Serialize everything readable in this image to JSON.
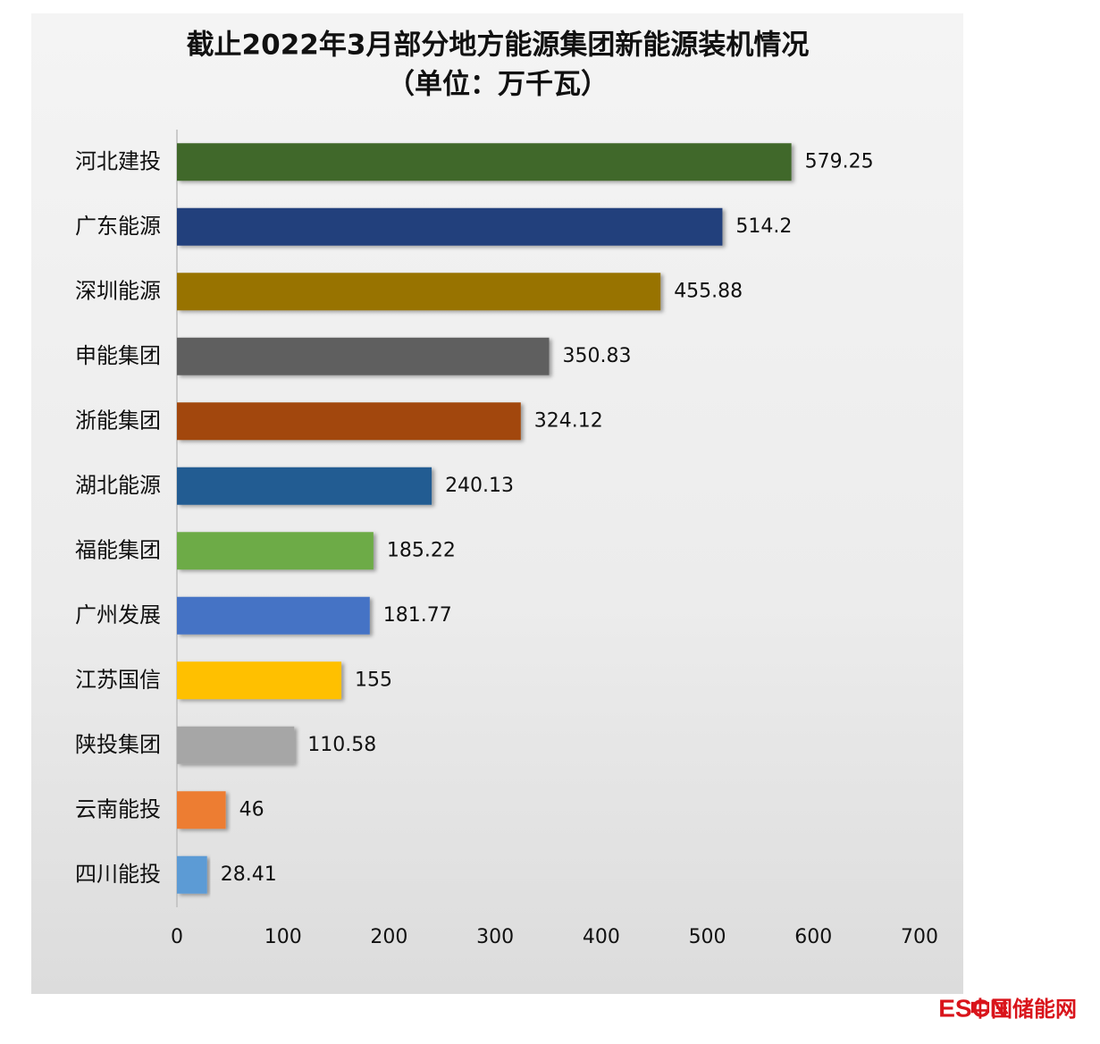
{
  "chart_data": {
    "type": "bar",
    "orientation": "horizontal",
    "title": "截止2022年3月部分地方能源集团新能源装机情况",
    "subtitle": "（单位：万千瓦）",
    "categories": [
      "河北建投",
      "广东能源",
      "深圳能源",
      "申能集团",
      "浙能集团",
      "湖北能源",
      "福能集团",
      "广州发展",
      "江苏国信",
      "陕投集团",
      "云南能投",
      "四川能投"
    ],
    "values": [
      579.25,
      514.2,
      455.88,
      350.83,
      324.12,
      240.13,
      185.22,
      181.77,
      155,
      110.58,
      46,
      28.41
    ],
    "colors": [
      "#41682b",
      "#213f7c",
      "#987300",
      "#5f5f5f",
      "#a2470c",
      "#235b92",
      "#6dab46",
      "#4573c5",
      "#ffc000",
      "#a6a6a6",
      "#ed7d31",
      "#5b9bd5"
    ],
    "xlim": [
      0,
      700
    ],
    "xticks": [
      0,
      100,
      200,
      300,
      400,
      500,
      600,
      700
    ],
    "grid": false
  },
  "logo": {
    "brand": "ESCN",
    "name": "中国储能网"
  }
}
